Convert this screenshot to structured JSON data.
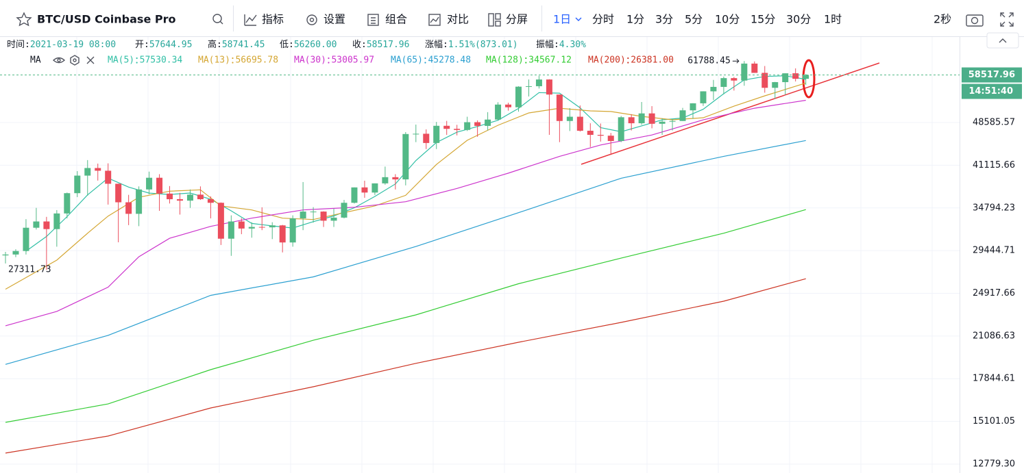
{
  "toolbar": {
    "symbol": "BTC/USD Coinbase Pro",
    "tools": [
      "指标",
      "设置",
      "组合",
      "对比",
      "分屏"
    ],
    "intervals": [
      "1日",
      "分时",
      "1分",
      "3分",
      "5分",
      "10分",
      "15分",
      "30分",
      "1时"
    ],
    "refresh": "2秒"
  },
  "info_bar": [
    {
      "label": "时间:",
      "value": "2021-03-19 08:00"
    },
    {
      "label": "开:",
      "value": "57644.95"
    },
    {
      "label": "高:",
      "value": "58741.45"
    },
    {
      "label": "低:",
      "value": "56260.00"
    },
    {
      "label": "收:",
      "value": "58517.96"
    },
    {
      "label": "涨幅:",
      "value": "1.51%(873.01)"
    },
    {
      "label": "振幅:",
      "value": "4.30%"
    }
  ],
  "chart_data": {
    "type": "candlestick",
    "indicator": "MA",
    "countdown": "14:51:40",
    "log_scale": true,
    "grid": true,
    "up_color": "#53b987",
    "down_color": "#eb4d5c",
    "ylim": [
      12342,
      68073
    ],
    "yticks": [
      48585.57,
      41115.66,
      34794.23,
      29444.71,
      24917.66,
      21086.63,
      17844.61,
      15101.05,
      {
        "value": 12779.3,
        "label": "12779.30"
      }
    ],
    "open": [
      28900,
      29000,
      29400,
      32200,
      33000,
      32030,
      34050,
      36860,
      39480,
      40670,
      40240,
      38240,
      35570,
      34000,
      37400,
      39150,
      36800,
      36000,
      35800,
      36650,
      36000,
      35500,
      30850,
      33000,
      32100,
      32300,
      32250,
      32500,
      30400,
      33400,
      34300,
      34300,
      33100,
      33500,
      35500,
      37700,
      36950,
      38300,
      39240,
      38900,
      46450,
      46500,
      44850,
      47970,
      47400,
      47200,
      48650,
      47950,
      49150,
      52120,
      51570,
      55900,
      56000,
      57490,
      54200,
      48880,
      49700,
      47050,
      46300,
      46150,
      45200,
      49600,
      48450,
      50350,
      48350,
      48750,
      48880,
      50960,
      52380,
      54890,
      55850,
      57800,
      57250,
      61180,
      59000,
      55650,
      56900,
      58900,
      57644.95
    ],
    "high": [
      29300,
      29600,
      33300,
      34800,
      33600,
      34500,
      36950,
      40180,
      41950,
      41380,
      41420,
      38260,
      36620,
      37850,
      40100,
      39700,
      37900,
      36900,
      37400,
      37850,
      36400,
      35550,
      33800,
      33430,
      32900,
      34880,
      32900,
      32560,
      33800,
      38500,
      34900,
      34340,
      34700,
      35900,
      37700,
      38700,
      38300,
      40900,
      39700,
      46800,
      48200,
      47300,
      48700,
      48900,
      48150,
      49700,
      49000,
      50600,
      52600,
      52500,
      56000,
      57500,
      58350,
      57540,
      54200,
      51400,
      51950,
      48450,
      48400,
      46650,
      49850,
      50200,
      52650,
      51800,
      49400,
      49200,
      51450,
      52400,
      54900,
      57400,
      58150,
      58050,
      61788.45,
      61700,
      60600,
      56950,
      58900,
      60050,
      58741.45
    ],
    "low": [
      28000,
      28700,
      29000,
      31980,
      27311.73,
      29900,
      33400,
      36300,
      36500,
      38720,
      35250,
      30420,
      32530,
      32400,
      36700,
      34400,
      35400,
      33900,
      34800,
      35900,
      33400,
      30100,
      28850,
      31400,
      30970,
      31900,
      30800,
      29240,
      29900,
      31900,
      32850,
      32300,
      32300,
      33400,
      35400,
      36200,
      36600,
      38100,
      37400,
      38000,
      45000,
      43800,
      43800,
      46300,
      46200,
      47000,
      45950,
      47100,
      48950,
      50900,
      50700,
      53800,
      55500,
      46300,
      45000,
      47000,
      46900,
      44150,
      45100,
      43000,
      45000,
      47100,
      48150,
      47500,
      46300,
      47100,
      48880,
      49300,
      51850,
      53050,
      54250,
      55050,
      56100,
      59000,
      54600,
      53300,
      54150,
      57050,
      56260
    ],
    "close": [
      29000,
      29400,
      32200,
      33000,
      32030,
      34050,
      36860,
      39480,
      40670,
      40240,
      38240,
      35570,
      34000,
      37400,
      39150,
      36800,
      36000,
      35800,
      36650,
      36000,
      35500,
      30850,
      33000,
      32100,
      32300,
      32250,
      32500,
      30400,
      33400,
      34300,
      34300,
      33100,
      33500,
      35500,
      37700,
      36950,
      38300,
      39240,
      38900,
      46450,
      46500,
      44850,
      47970,
      47400,
      47200,
      48650,
      47950,
      49150,
      52120,
      51570,
      55900,
      56000,
      57490,
      54200,
      48880,
      49700,
      47050,
      46300,
      46150,
      45200,
      49600,
      48450,
      50350,
      48350,
      48750,
      48880,
      50960,
      52380,
      54890,
      55850,
      57800,
      57250,
      61180,
      59000,
      55650,
      56900,
      58900,
      57644.95,
      58517.96
    ],
    "series": [
      {
        "name": "MA(5)",
        "color": "#2fbfa5",
        "x": [
          2,
          4,
          6,
          8,
          10,
          12,
          14,
          16,
          18,
          20,
          22,
          24,
          26,
          28,
          30,
          32,
          34,
          36,
          38,
          40,
          42,
          44,
          46,
          48,
          50,
          52,
          54,
          56,
          58,
          60,
          62,
          64,
          66,
          68,
          70,
          72,
          74,
          76,
          78
        ],
        "values": [
          29374,
          31126,
          33628,
          36618,
          39098,
          37744,
          36872,
          36670,
          36880,
          35990,
          34400,
          32750,
          32430,
          32170,
          32980,
          33720,
          34820,
          36390,
          38218,
          41878,
          44934,
          46784,
          47834,
          49014,
          51338,
          54616,
          54494,
          51464,
          47616,
          46860,
          47950,
          49100,
          49458,
          51172,
          54376,
          57394,
          58176,
          58326,
          57530.34
        ]
      },
      {
        "name": "MA(13)",
        "color": "#d4a632",
        "x": [
          0,
          5,
          8,
          10,
          13,
          16,
          19,
          21,
          24,
          27,
          30,
          33,
          36,
          39,
          42,
          45,
          48,
          51,
          54,
          57,
          59,
          62,
          65,
          68,
          71,
          74,
          78
        ],
        "values": [
          25320,
          28370,
          31520,
          33700,
          36270,
          37150,
          37350,
          35070,
          34520,
          33430,
          33250,
          34150,
          35070,
          36550,
          41230,
          45320,
          48070,
          50440,
          51380,
          50850,
          50720,
          49770,
          49110,
          49500,
          51800,
          53930,
          56695.78
        ]
      },
      {
        "name": "MA(30)",
        "color": "#cc33cc",
        "x": [
          0,
          5,
          10,
          13,
          16,
          20,
          24,
          29,
          34,
          39,
          44,
          49,
          54,
          58,
          63,
          68,
          73,
          78
        ],
        "values": [
          21950,
          23220,
          25524,
          28745,
          30900,
          32370,
          33430,
          34520,
          34880,
          35650,
          37550,
          39860,
          42570,
          44500,
          46280,
          49100,
          51380,
          53005.97
        ]
      },
      {
        "name": "MA(65)",
        "color": "#2a9fd0",
        "x": [
          0,
          10,
          20,
          30,
          40,
          50,
          60,
          70,
          78
        ],
        "values": [
          18876,
          21143,
          24717,
          26570,
          29921,
          34150,
          39080,
          42570,
          45278.48
        ]
      },
      {
        "name": "MA(128)",
        "color": "#33cc33",
        "x": [
          0,
          10,
          20,
          30,
          40,
          50,
          60,
          70,
          78
        ],
        "values": [
          15046,
          16170,
          18490,
          20740,
          22900,
          25870,
          28590,
          31520,
          34567.12
        ]
      },
      {
        "name": "MA(200)",
        "color": "#cc3322",
        "x": [
          0,
          10,
          20,
          30,
          40,
          50,
          60,
          70,
          78
        ],
        "values": [
          13340,
          14260,
          15915,
          17290,
          18950,
          20580,
          22240,
          24160,
          26381
        ],
        "value_labels": [
          null,
          null,
          null,
          null,
          null,
          null,
          null,
          null,
          "26381.00"
        ]
      }
    ]
  }
}
